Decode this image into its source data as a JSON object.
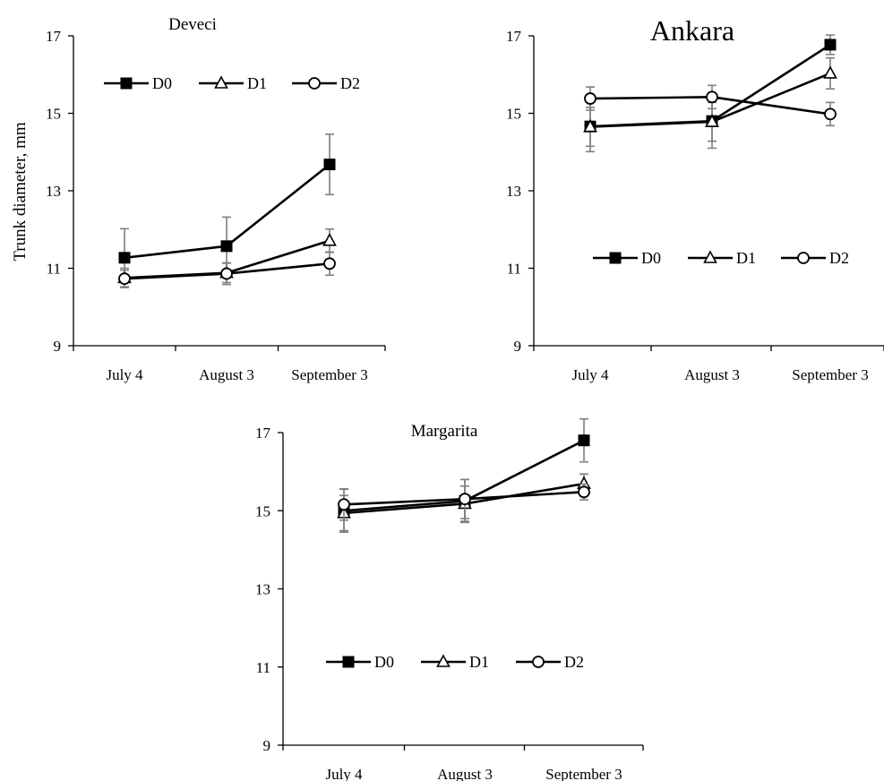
{
  "y_axis_label": "Trunk diameter, mm",
  "chart_data": [
    {
      "type": "line",
      "title": "Deveci",
      "categories": [
        "July 4",
        "August 3",
        "September 3"
      ],
      "ylim": [
        9,
        17
      ],
      "yticks": [
        9,
        11,
        13,
        15,
        17
      ],
      "legend": "top-left",
      "series": [
        {
          "name": "D0",
          "marker": "filled-square",
          "values": [
            11.27,
            11.57,
            13.68
          ],
          "errors": [
            0.75,
            0.75,
            0.78
          ]
        },
        {
          "name": "D1",
          "marker": "open-triangle",
          "values": [
            10.75,
            10.88,
            11.71
          ],
          "errors": [
            0.25,
            0.25,
            0.3
          ]
        },
        {
          "name": "D2",
          "marker": "open-circle",
          "values": [
            10.73,
            10.86,
            11.12
          ],
          "errors": [
            0.22,
            0.28,
            0.3
          ]
        }
      ]
    },
    {
      "type": "line",
      "title": "Ankara",
      "categories": [
        "July 4",
        "August 3",
        "September 3"
      ],
      "ylim": [
        9,
        17
      ],
      "yticks": [
        9,
        11,
        13,
        15,
        17
      ],
      "legend": "center",
      "series": [
        {
          "name": "D0",
          "marker": "filled-square",
          "values": [
            14.66,
            14.8,
            16.77
          ],
          "errors": [
            0.65,
            0.7,
            0.25
          ]
        },
        {
          "name": "D1",
          "marker": "open-triangle",
          "values": [
            14.65,
            14.78,
            16.03
          ],
          "errors": [
            0.5,
            0.5,
            0.4
          ]
        },
        {
          "name": "D2",
          "marker": "open-circle",
          "values": [
            15.38,
            15.42,
            14.98
          ],
          "errors": [
            0.3,
            0.3,
            0.3
          ]
        }
      ]
    },
    {
      "type": "line",
      "title": "Margarita",
      "categories": [
        "July 4",
        "August 3",
        "September 3"
      ],
      "ylim": [
        9,
        17
      ],
      "yticks": [
        9,
        11,
        13,
        15,
        17
      ],
      "legend": "center",
      "series": [
        {
          "name": "D0",
          "marker": "filled-square",
          "values": [
            15.0,
            15.25,
            16.8
          ],
          "errors": [
            0.55,
            0.55,
            0.55
          ]
        },
        {
          "name": "D1",
          "marker": "open-triangle",
          "values": [
            14.94,
            15.18,
            15.69
          ],
          "errors": [
            0.45,
            0.45,
            0.25
          ]
        },
        {
          "name": "D2",
          "marker": "open-circle",
          "values": [
            15.16,
            15.3,
            15.48
          ],
          "errors": [
            0.4,
            0.5,
            0.2
          ]
        }
      ]
    }
  ]
}
